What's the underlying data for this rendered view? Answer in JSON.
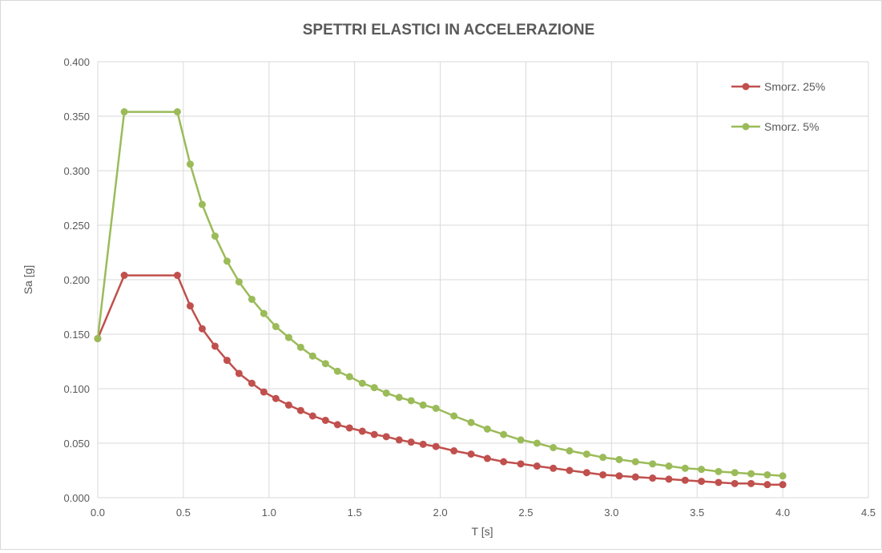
{
  "chart_data": {
    "type": "line",
    "title": "SPETTRI ELASTICI IN ACCELERAZIONE",
    "xlabel": "T [s]",
    "ylabel": "Sa [g]",
    "xlim": [
      0,
      4.5
    ],
    "ylim": [
      0,
      0.4
    ],
    "x_ticks": [
      "0.0",
      "0.5",
      "1.0",
      "1.5",
      "2.0",
      "2.5",
      "3.0",
      "3.5",
      "4.0",
      "4.5"
    ],
    "y_ticks": [
      "0.000",
      "0.050",
      "0.100",
      "0.150",
      "0.200",
      "0.250",
      "0.300",
      "0.350",
      "0.400"
    ],
    "grid": true,
    "legend_position": "top-right",
    "series": [
      {
        "name": "Smorz. 25%",
        "color": "#c0504d",
        "x": [
          0.0,
          0.155,
          0.465,
          0.54,
          0.61,
          0.685,
          0.755,
          0.825,
          0.9,
          0.97,
          1.04,
          1.115,
          1.185,
          1.255,
          1.33,
          1.4,
          1.47,
          1.545,
          1.615,
          1.685,
          1.76,
          1.83,
          1.9,
          1.975,
          2.08,
          2.18,
          2.275,
          2.37,
          2.47,
          2.565,
          2.66,
          2.755,
          2.855,
          2.95,
          3.045,
          3.14,
          3.24,
          3.335,
          3.43,
          3.525,
          3.625,
          3.72,
          3.815,
          3.91,
          4.0
        ],
        "values": [
          0.146,
          0.204,
          0.204,
          0.176,
          0.155,
          0.139,
          0.126,
          0.114,
          0.105,
          0.097,
          0.091,
          0.085,
          0.08,
          0.075,
          0.071,
          0.067,
          0.064,
          0.061,
          0.058,
          0.056,
          0.053,
          0.051,
          0.049,
          0.047,
          0.043,
          0.04,
          0.036,
          0.033,
          0.031,
          0.029,
          0.027,
          0.025,
          0.023,
          0.021,
          0.02,
          0.019,
          0.018,
          0.017,
          0.016,
          0.015,
          0.014,
          0.013,
          0.013,
          0.012,
          0.012
        ]
      },
      {
        "name": "Smorz. 5%",
        "color": "#9bbb59",
        "x": [
          0.0,
          0.155,
          0.465,
          0.54,
          0.61,
          0.685,
          0.755,
          0.825,
          0.9,
          0.97,
          1.04,
          1.115,
          1.185,
          1.255,
          1.33,
          1.4,
          1.47,
          1.545,
          1.615,
          1.685,
          1.76,
          1.83,
          1.9,
          1.975,
          2.08,
          2.18,
          2.275,
          2.37,
          2.47,
          2.565,
          2.66,
          2.755,
          2.855,
          2.95,
          3.045,
          3.14,
          3.24,
          3.335,
          3.43,
          3.525,
          3.625,
          3.72,
          3.815,
          3.91,
          4.0
        ],
        "values": [
          0.146,
          0.354,
          0.354,
          0.306,
          0.269,
          0.24,
          0.217,
          0.198,
          0.182,
          0.169,
          0.157,
          0.147,
          0.138,
          0.13,
          0.123,
          0.116,
          0.111,
          0.105,
          0.101,
          0.096,
          0.092,
          0.089,
          0.085,
          0.082,
          0.075,
          0.069,
          0.063,
          0.058,
          0.053,
          0.05,
          0.046,
          0.043,
          0.04,
          0.037,
          0.035,
          0.033,
          0.031,
          0.029,
          0.027,
          0.026,
          0.024,
          0.023,
          0.022,
          0.021,
          0.02
        ]
      }
    ]
  }
}
